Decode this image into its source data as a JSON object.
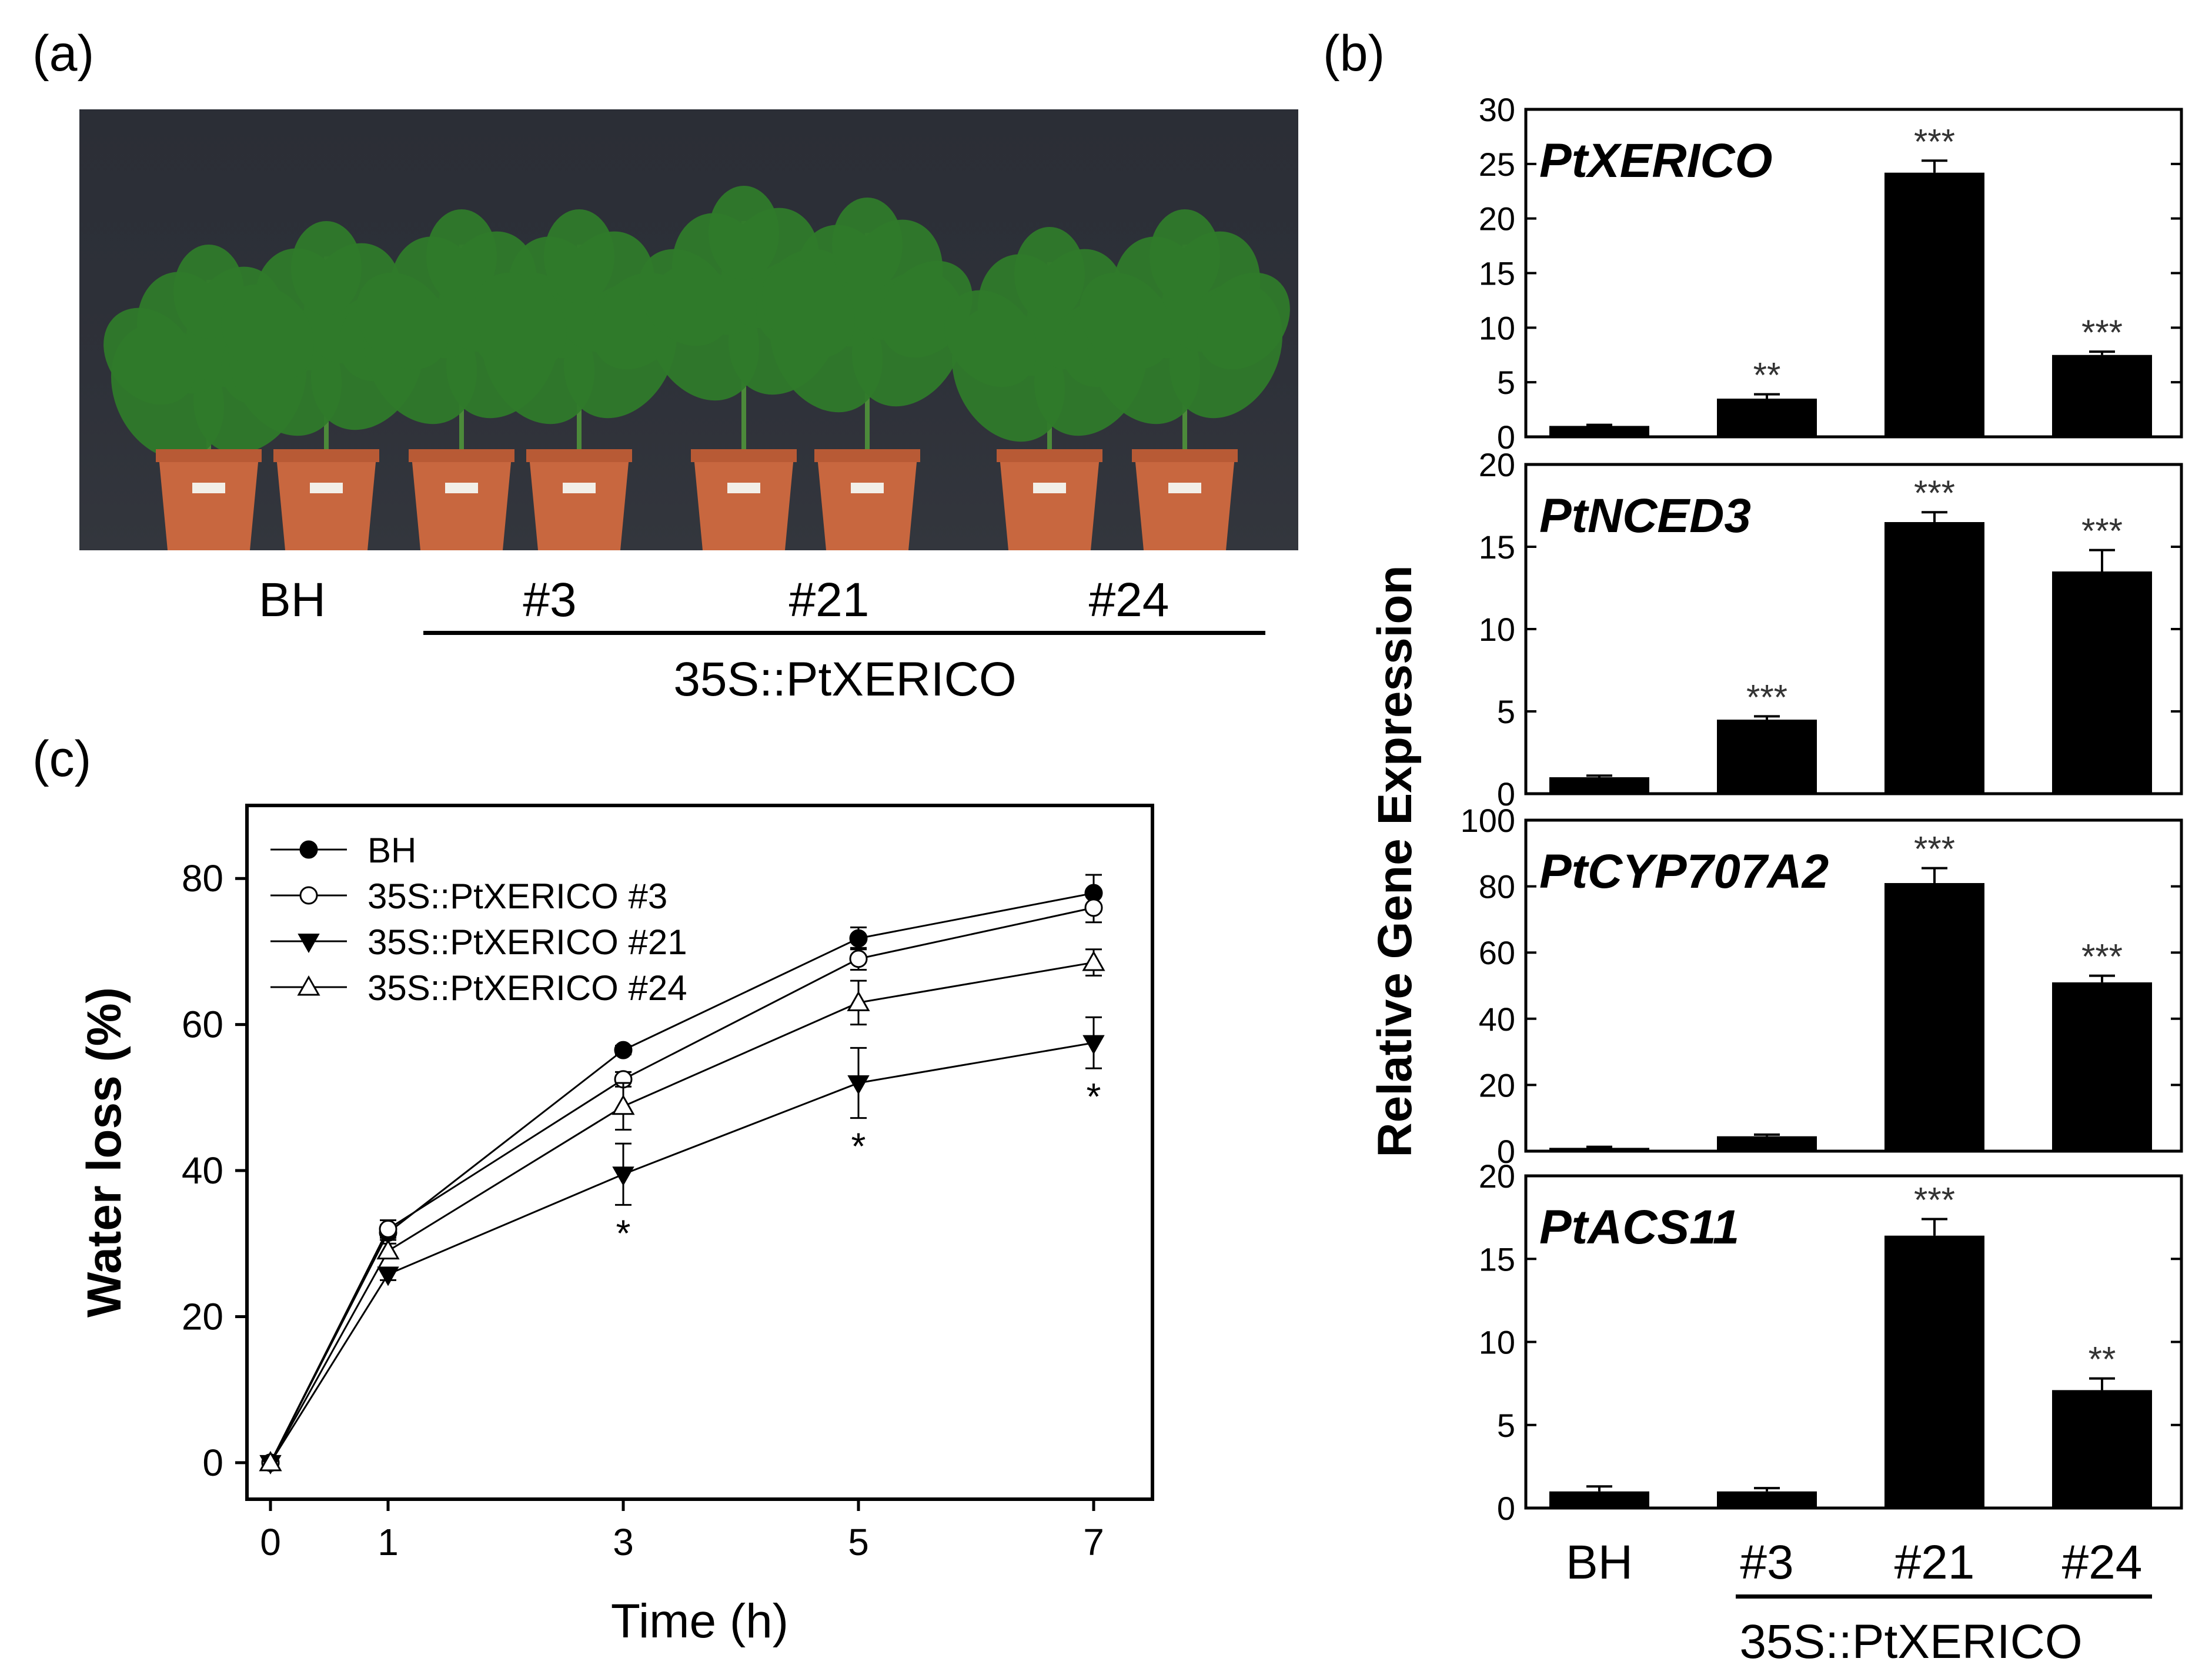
{
  "panels": {
    "a": {
      "letter": "(a)",
      "groups": [
        "BH",
        "#3",
        "#21",
        "#24"
      ],
      "construct": "35S::PtXERICO"
    },
    "b": {
      "letter": "(b)",
      "ylabel": "Relative Gene Expression",
      "groups": [
        "BH",
        "#3",
        "#21",
        "#24"
      ],
      "construct": "35S::PtXERICO"
    },
    "c": {
      "letter": "(c)"
    }
  },
  "colors": {
    "bar": "#000000",
    "plant_green": "#2f7a2a",
    "pot": "#c8673f",
    "backdrop": "#2e3139"
  },
  "chart_data": [
    {
      "type": "bar",
      "panel": "b",
      "title": "PtXERICO",
      "categories": [
        "BH",
        "#3",
        "#21",
        "#24"
      ],
      "values": [
        1.0,
        3.5,
        24.2,
        7.5
      ],
      "errors": [
        0.1,
        0.4,
        1.1,
        0.3
      ],
      "significance": [
        "",
        "**",
        "***",
        "***"
      ],
      "ylim": [
        0,
        30
      ],
      "yticks": [
        0,
        5,
        10,
        15,
        20,
        25,
        30
      ]
    },
    {
      "type": "bar",
      "panel": "b",
      "title": "PtNCED3",
      "categories": [
        "BH",
        "#3",
        "#21",
        "#24"
      ],
      "values": [
        1.0,
        4.5,
        16.5,
        13.5
      ],
      "errors": [
        0.1,
        0.2,
        0.6,
        1.3
      ],
      "significance": [
        "",
        "***",
        "***",
        "***"
      ],
      "ylim": [
        0,
        20
      ],
      "yticks": [
        0,
        5,
        10,
        15,
        20
      ]
    },
    {
      "type": "bar",
      "panel": "b",
      "title": "PtCYP707A2",
      "categories": [
        "BH",
        "#3",
        "#21",
        "#24"
      ],
      "values": [
        1.0,
        4.5,
        81.0,
        51.0
      ],
      "errors": [
        0.3,
        0.5,
        4.5,
        2.0
      ],
      "significance": [
        "",
        "",
        "***",
        "***"
      ],
      "ylim": [
        0,
        100
      ],
      "yticks": [
        0,
        20,
        40,
        60,
        80,
        100
      ]
    },
    {
      "type": "bar",
      "panel": "b",
      "title": "PtACS11",
      "categories": [
        "BH",
        "#3",
        "#21",
        "#24"
      ],
      "values": [
        1.0,
        1.0,
        16.4,
        7.1
      ],
      "errors": [
        0.3,
        0.2,
        1.0,
        0.7
      ],
      "significance": [
        "",
        "",
        "***",
        "**"
      ],
      "ylim": [
        0,
        20
      ],
      "yticks": [
        0,
        5,
        10,
        15,
        20
      ]
    },
    {
      "type": "line",
      "panel": "c",
      "xlabel": "Time (h)",
      "ylabel": "Water loss (%)",
      "x": [
        0,
        1,
        3,
        5,
        7
      ],
      "xlim": [
        -0.2,
        7.5
      ],
      "ylim": [
        -5,
        90
      ],
      "xticks": [
        0,
        1,
        3,
        5,
        7
      ],
      "yticks": [
        0,
        20,
        40,
        60,
        80
      ],
      "legend_position": "top-left",
      "series": [
        {
          "name": "BH",
          "marker": "filled-circle",
          "values": [
            0,
            31.5,
            56.5,
            71.8,
            78.0
          ],
          "errors": [
            0,
            1.0,
            0.6,
            1.5,
            2.5
          ]
        },
        {
          "name": "35S::PtXERICO #3",
          "marker": "open-circle",
          "values": [
            0,
            32.0,
            52.5,
            69.0,
            76.0
          ],
          "errors": [
            0,
            1.2,
            1.0,
            1.5,
            2.0
          ]
        },
        {
          "name": "35S::PtXERICO #21",
          "marker": "filled-triangle-down",
          "values": [
            0,
            25.8,
            39.5,
            52.0,
            57.5
          ],
          "errors": [
            0,
            0.8,
            4.2,
            4.8,
            3.5
          ]
        },
        {
          "name": "35S::PtXERICO #24",
          "marker": "open-triangle-up",
          "values": [
            0,
            29.0,
            48.8,
            63.0,
            68.5
          ],
          "errors": [
            0,
            1.0,
            3.2,
            3.0,
            1.8
          ]
        }
      ],
      "annotations": [
        {
          "x": 3,
          "text": "*"
        },
        {
          "x": 5,
          "text": "*"
        },
        {
          "x": 7,
          "text": "*"
        }
      ]
    }
  ]
}
